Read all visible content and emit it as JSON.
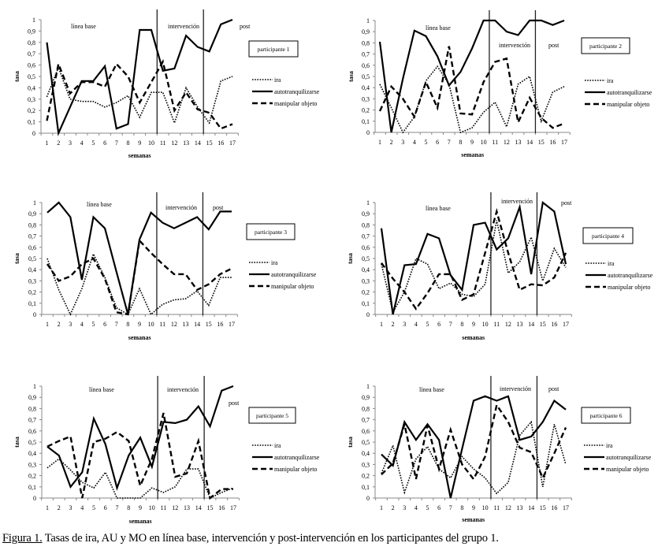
{
  "figure": {
    "caption_label": "Figura 1.",
    "caption_text": " Tasas de ira, AU y MO en línea base, intervención  y post-intervención en los participantes del grupo 1."
  },
  "chart_data": [
    {
      "type": "line",
      "title": "participante 1",
      "xlabel": "semanas",
      "ylabel": "tasa",
      "x": [
        1,
        2,
        3,
        4,
        5,
        6,
        7,
        8,
        9,
        10,
        11,
        12,
        13,
        14,
        15,
        16,
        17
      ],
      "ylim": [
        0,
        1
      ],
      "yticks": [
        "0",
        "0,1",
        "0,2",
        "0,3",
        "0,4",
        "0,5",
        "0,6",
        "0,7",
        "0,8",
        "0,9",
        "1"
      ],
      "phase_lines": [
        10.5,
        14.5
      ],
      "phase_labels": [
        "línea base",
        "intervención",
        "post"
      ],
      "legend": "right",
      "series": [
        {
          "name": "ira",
          "style": "dotted",
          "values": [
            0.32,
            0.58,
            0.3,
            0.28,
            0.28,
            0.23,
            0.27,
            0.33,
            0.14,
            0.36,
            0.36,
            0.09,
            0.4,
            0.23,
            0.09,
            0.46,
            0.5
          ]
        },
        {
          "name": "autotranquilizarse",
          "style": "solid",
          "values": [
            0.8,
            0.0,
            0.23,
            0.46,
            0.46,
            0.59,
            0.04,
            0.08,
            0.91,
            0.91,
            0.55,
            0.57,
            0.86,
            0.76,
            0.72,
            0.96,
            1.0
          ]
        },
        {
          "name": "manipular objeto",
          "style": "dashed",
          "values": [
            0.11,
            0.61,
            0.35,
            0.45,
            0.45,
            0.41,
            0.61,
            0.5,
            0.27,
            0.45,
            0.63,
            0.2,
            0.36,
            0.21,
            0.18,
            0.04,
            0.08
          ]
        }
      ]
    },
    {
      "type": "line",
      "title": "participante 2",
      "xlabel": "semanas",
      "ylabel": "tasa",
      "x": [
        1,
        2,
        3,
        4,
        5,
        6,
        7,
        8,
        9,
        10,
        11,
        12,
        13,
        14,
        15,
        16,
        17
      ],
      "ylim": [
        0,
        1
      ],
      "yticks": [
        "0",
        "0,1",
        "0,2",
        "0,3",
        "0,4",
        "0,5",
        "0,6",
        "0,7",
        "0,8",
        "0,9",
        "1"
      ],
      "phase_lines": [
        10.5,
        14.5
      ],
      "phase_labels": [
        "línea base",
        "intervención",
        "post"
      ],
      "legend": "right",
      "series": [
        {
          "name": "ira",
          "style": "dotted",
          "values": [
            0.43,
            0.22,
            0.0,
            0.14,
            0.46,
            0.59,
            0.43,
            0.0,
            0.04,
            0.18,
            0.27,
            0.05,
            0.43,
            0.5,
            0.1,
            0.36,
            0.41
          ]
        },
        {
          "name": "autotranquilizarse",
          "style": "solid",
          "values": [
            0.81,
            0.0,
            0.48,
            0.91,
            0.86,
            0.68,
            0.42,
            0.54,
            0.75,
            1.0,
            1.0,
            0.9,
            0.87,
            1.0,
            1.0,
            0.96,
            1.0
          ]
        },
        {
          "name": "manipular objeto",
          "style": "dashed",
          "values": [
            0.19,
            0.41,
            0.3,
            0.14,
            0.45,
            0.22,
            0.77,
            0.17,
            0.16,
            0.45,
            0.63,
            0.66,
            0.09,
            0.31,
            0.13,
            0.04,
            0.08
          ]
        }
      ]
    },
    {
      "type": "line",
      "title": "participante 3",
      "xlabel": "semanas",
      "ylabel": "tasa",
      "x": [
        1,
        2,
        3,
        4,
        5,
        6,
        7,
        8,
        9,
        10,
        11,
        12,
        13,
        14,
        15,
        16,
        17
      ],
      "ylim": [
        0,
        1
      ],
      "yticks": [
        "0",
        "0,1",
        "0,2",
        "0,3",
        "0,4",
        "0,5",
        "0,6",
        "0,7",
        "0,8",
        "0,9",
        "1"
      ],
      "phase_lines": [
        10.5,
        14.5
      ],
      "phase_labels": [
        "línea base",
        "intervención",
        "post"
      ],
      "legend": "right",
      "series": [
        {
          "name": "ira",
          "style": "dotted",
          "values": [
            0.5,
            0.22,
            0.0,
            0.23,
            0.54,
            0.33,
            0.06,
            0.0,
            0.23,
            0.0,
            0.09,
            0.13,
            0.14,
            0.21,
            0.08,
            0.33,
            0.33
          ]
        },
        {
          "name": "autotranquilizarse",
          "style": "solid",
          "values": [
            0.91,
            1.0,
            0.87,
            0.31,
            0.87,
            0.77,
            0.38,
            0.0,
            0.67,
            0.91,
            0.82,
            0.77,
            0.82,
            0.87,
            0.76,
            0.92,
            0.92
          ]
        },
        {
          "name": "manipular objeto",
          "style": "dashed",
          "values": [
            0.45,
            0.3,
            0.34,
            0.45,
            0.5,
            0.32,
            0.02,
            0.0,
            0.66,
            0.55,
            0.45,
            0.36,
            0.36,
            0.22,
            0.27,
            0.36,
            0.41
          ]
        }
      ]
    },
    {
      "type": "line",
      "title": "participante 4",
      "xlabel": "semanas",
      "ylabel": "tasa",
      "x": [
        1,
        2,
        3,
        4,
        5,
        6,
        7,
        8,
        9,
        10,
        11,
        12,
        13,
        14,
        15,
        16,
        17
      ],
      "ylim": [
        0,
        1
      ],
      "yticks": [
        "0",
        "0,1",
        "0,2",
        "0,3",
        "0,4",
        "0,5",
        "0,6",
        "0,7",
        "0,8",
        "0,9",
        "1"
      ],
      "phase_lines": [
        10.5,
        14.5
      ],
      "phase_labels": [
        "línea base",
        "intervención",
        "post"
      ],
      "legend": "right",
      "series": [
        {
          "name": "ira",
          "style": "dotted",
          "values": [
            0.45,
            0.02,
            0.2,
            0.5,
            0.45,
            0.23,
            0.28,
            0.18,
            0.16,
            0.27,
            0.84,
            0.37,
            0.47,
            0.69,
            0.3,
            0.59,
            0.42
          ]
        },
        {
          "name": "autotranquilizarse",
          "style": "solid",
          "values": [
            0.77,
            0.0,
            0.44,
            0.45,
            0.72,
            0.68,
            0.35,
            0.22,
            0.8,
            0.82,
            0.58,
            0.68,
            0.96,
            0.36,
            1.0,
            0.92,
            0.45
          ]
        },
        {
          "name": "manipular objeto",
          "style": "dashed",
          "values": [
            0.46,
            0.32,
            0.2,
            0.05,
            0.19,
            0.36,
            0.36,
            0.13,
            0.18,
            0.55,
            0.92,
            0.55,
            0.22,
            0.27,
            0.26,
            0.33,
            0.55
          ]
        }
      ]
    },
    {
      "type": "line",
      "title": "participante 5",
      "xlabel": "semanas",
      "ylabel": "tasa",
      "x": [
        1,
        2,
        3,
        4,
        5,
        6,
        7,
        8,
        9,
        10,
        11,
        12,
        13,
        14,
        15,
        16,
        17
      ],
      "ylim": [
        0,
        1
      ],
      "yticks": [
        "0",
        "0,1",
        "0,2",
        "0,3",
        "0,4",
        "0,5",
        "0,6",
        "0,7",
        "0,8",
        "0,9",
        "1"
      ],
      "phase_lines": [
        10.5,
        14.5
      ],
      "phase_labels": [
        "línea base",
        "intervención",
        "post"
      ],
      "legend": "right",
      "series": [
        {
          "name": "ira",
          "style": "dotted",
          "values": [
            0.27,
            0.35,
            0.25,
            0.14,
            0.09,
            0.23,
            0.0,
            0.0,
            0.0,
            0.09,
            0.05,
            0.1,
            0.26,
            0.26,
            0.0,
            0.05,
            0.09
          ]
        },
        {
          "name": "autotranquilizarse",
          "style": "solid",
          "values": [
            0.46,
            0.38,
            0.1,
            0.23,
            0.71,
            0.48,
            0.09,
            0.38,
            0.54,
            0.28,
            0.68,
            0.67,
            0.7,
            0.82,
            0.64,
            0.96,
            1.0
          ]
        },
        {
          "name": "manipular objeto",
          "style": "dashed",
          "values": [
            0.46,
            0.51,
            0.55,
            0.0,
            0.5,
            0.53,
            0.59,
            0.51,
            0.11,
            0.35,
            0.76,
            0.19,
            0.22,
            0.51,
            0.0,
            0.08,
            0.08
          ]
        }
      ]
    },
    {
      "type": "line",
      "title": "participante 6",
      "xlabel": "semanas",
      "ylabel": "tasa",
      "x": [
        1,
        2,
        3,
        4,
        5,
        6,
        7,
        8,
        9,
        10,
        11,
        12,
        13,
        14,
        15,
        16,
        17
      ],
      "ylim": [
        0,
        1
      ],
      "yticks": [
        "0",
        "0,1",
        "0,2",
        "0,3",
        "0,4",
        "0,5",
        "0,6",
        "0,7",
        "0,8",
        "0,9",
        "1"
      ],
      "phase_lines": [
        10.5,
        14.5
      ],
      "phase_labels": [
        "línea base",
        "intervención",
        "post"
      ],
      "legend": "right",
      "series": [
        {
          "name": "ira",
          "style": "dotted",
          "values": [
            0.22,
            0.47,
            0.05,
            0.35,
            0.46,
            0.26,
            0.18,
            0.37,
            0.26,
            0.18,
            0.04,
            0.14,
            0.56,
            0.68,
            0.1,
            0.66,
            0.3
          ]
        },
        {
          "name": "autotranquilizarse",
          "style": "solid",
          "values": [
            0.39,
            0.29,
            0.68,
            0.52,
            0.66,
            0.52,
            0.0,
            0.44,
            0.87,
            0.91,
            0.87,
            0.91,
            0.52,
            0.55,
            0.68,
            0.87,
            0.79
          ]
        },
        {
          "name": "manipular objeto",
          "style": "dashed",
          "values": [
            0.21,
            0.31,
            0.66,
            0.17,
            0.65,
            0.26,
            0.61,
            0.3,
            0.17,
            0.37,
            0.83,
            0.68,
            0.45,
            0.41,
            0.18,
            0.4,
            0.63
          ]
        }
      ]
    }
  ]
}
